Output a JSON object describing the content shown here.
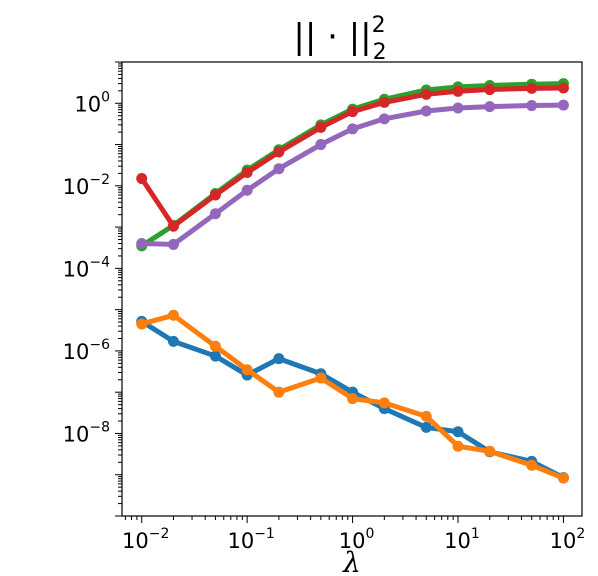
{
  "chart_data": {
    "type": "line",
    "title": "|| · ||",
    "title_sub": "2",
    "title_sup": "2",
    "xlabel": "λ",
    "ylabel": "",
    "xscale": "log",
    "yscale": "log",
    "xlim": [
      0.0065,
      150
    ],
    "ylim": [
      1e-10,
      10
    ],
    "grid": false,
    "x": [
      0.01,
      0.02,
      0.05,
      0.1,
      0.2,
      0.5,
      1,
      2,
      5,
      10,
      20,
      50,
      100
    ],
    "x_ticks": [
      {
        "value": 0.01,
        "base": "10",
        "exp": "−2"
      },
      {
        "value": 0.1,
        "base": "10",
        "exp": "−1"
      },
      {
        "value": 1,
        "base": "10",
        "exp": "0"
      },
      {
        "value": 10,
        "base": "10",
        "exp": "1"
      },
      {
        "value": 100,
        "base": "10",
        "exp": "2"
      }
    ],
    "y_ticks": [
      {
        "value": 1,
        "base": "10",
        "exp": "0"
      },
      {
        "value": 0.01,
        "base": "10",
        "exp": "−2"
      },
      {
        "value": 0.0001,
        "base": "10",
        "exp": "−4"
      },
      {
        "value": 1e-06,
        "base": "10",
        "exp": "−6"
      },
      {
        "value": 1e-08,
        "base": "10",
        "exp": "−8"
      }
    ],
    "series": [
      {
        "color": "#2ca02c",
        "values": [
          0.00035,
          0.0011,
          0.0065,
          0.024,
          0.075,
          0.3,
          0.72,
          1.25,
          2.1,
          2.5,
          2.7,
          2.9,
          3.0
        ]
      },
      {
        "color": "#d62728",
        "values": [
          0.015,
          0.00105,
          0.006,
          0.021,
          0.066,
          0.26,
          0.63,
          1.05,
          1.65,
          1.95,
          2.15,
          2.3,
          2.35
        ]
      },
      {
        "color": "#9467bd",
        "values": [
          0.0004,
          0.00038,
          0.0021,
          0.0078,
          0.026,
          0.1,
          0.24,
          0.42,
          0.65,
          0.77,
          0.83,
          0.88,
          0.9
        ]
      },
      {
        "color": "#1f77b4",
        "values": [
          5.2e-06,
          1.7e-06,
          7.5e-07,
          2.6e-07,
          6.5e-07,
          2.8e-07,
          1e-07,
          4e-08,
          1.4e-08,
          1.1e-08,
          3.6e-09,
          2.1e-09,
          8.5e-10
        ]
      },
      {
        "color": "#ff7f0e",
        "values": [
          4.5e-06,
          7.3e-06,
          1.3e-06,
          3.5e-07,
          1e-07,
          2.2e-07,
          7e-08,
          5.5e-08,
          2.6e-08,
          4.9e-09,
          3.7e-09,
          1.7e-09,
          8.3e-10
        ]
      }
    ]
  }
}
